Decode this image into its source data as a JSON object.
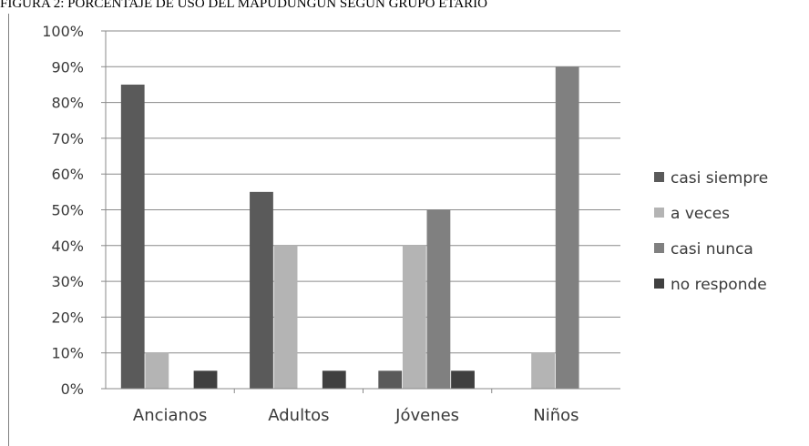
{
  "caption": "FIGURA 2: PORCENTAJE DE USO DEL MAPUDUNGUN SEGÚN GRUPO ETARIO",
  "chart_data": {
    "type": "bar",
    "categories": [
      "Ancianos",
      "Adultos",
      "Jóvenes",
      "Niños"
    ],
    "series": [
      {
        "name": "casi siempre",
        "color": "#5a5a5a",
        "values": [
          85,
          55,
          5,
          0
        ]
      },
      {
        "name": "a veces",
        "color": "#b4b4b4",
        "values": [
          10,
          40,
          40,
          10
        ]
      },
      {
        "name": "casi nunca",
        "color": "#808080",
        "values": [
          0,
          0,
          50,
          90
        ]
      },
      {
        "name": "no responde",
        "color": "#404040",
        "values": [
          5,
          5,
          5,
          0
        ]
      }
    ],
    "ylim": [
      0,
      100
    ],
    "yticks": [
      "0%",
      "10%",
      "20%",
      "30%",
      "40%",
      "50%",
      "60%",
      "70%",
      "80%",
      "90%",
      "100%"
    ],
    "grid": true,
    "legend_position": "right"
  }
}
